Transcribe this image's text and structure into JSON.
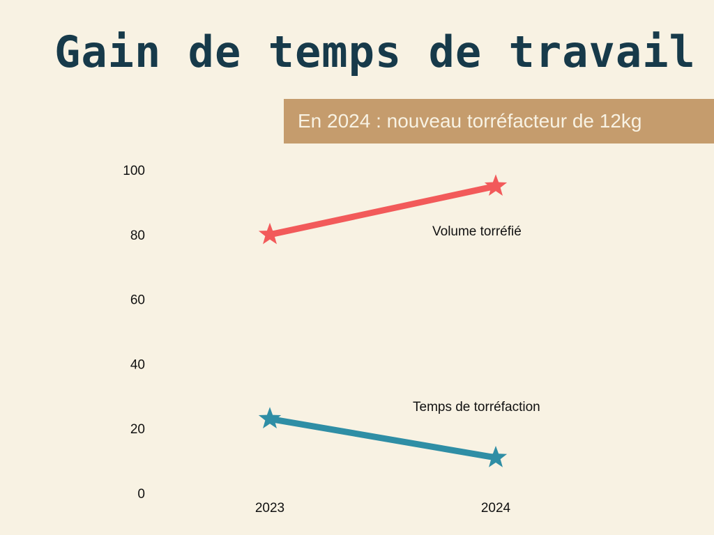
{
  "slide": {
    "title": "Gain de temps de travail",
    "banner": "En 2024 : nouveau torréfacteur de 12kg",
    "banner_color": "#c59c6d",
    "background_color": "#f8f2e3",
    "title_color": "#173a4a"
  },
  "chart_data": {
    "type": "line",
    "x": [
      "2023",
      "2024"
    ],
    "ylim": [
      0,
      100
    ],
    "yticks": [
      0,
      20,
      40,
      60,
      80,
      100
    ],
    "grid": false,
    "marker": "star",
    "series": [
      {
        "name": "Volume torréfié",
        "values": [
          80,
          95
        ],
        "color": "#f25a5a"
      },
      {
        "name": "Temps de torréfaction",
        "values": [
          23,
          11
        ],
        "color": "#2f8ea5"
      }
    ]
  }
}
